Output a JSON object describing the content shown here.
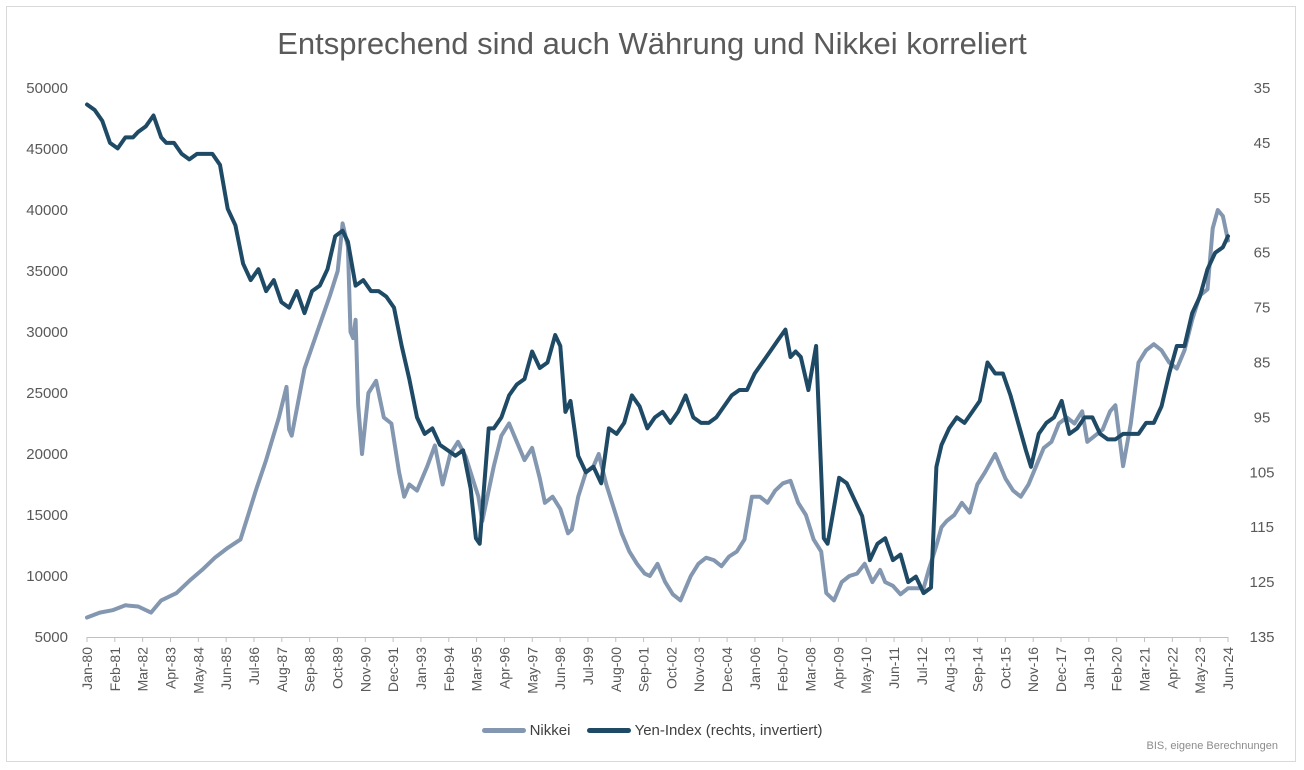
{
  "chart_data": {
    "type": "line",
    "title": "Entsprechend sind auch Währung und Nikkei korreliert",
    "source_note": "BIS, eigene Berechnungen",
    "xlabel": "",
    "ylabel": "",
    "ylabel_right": "",
    "legend_position": "bottom",
    "grid": false,
    "x_tick_labels": [
      "Jan-80",
      "Feb-81",
      "Mar-82",
      "Apr-83",
      "May-84",
      "Jun-85",
      "Jul-86",
      "Aug-87",
      "Sep-88",
      "Oct-89",
      "Nov-90",
      "Dec-91",
      "Jan-93",
      "Feb-94",
      "Mar-95",
      "Apr-96",
      "May-97",
      "Jun-98",
      "Jul-99",
      "Aug-00",
      "Sep-01",
      "Oct-02",
      "Nov-03",
      "Dec-04",
      "Jan-06",
      "Feb-07",
      "Mar-08",
      "Apr-09",
      "May-10",
      "Jun-11",
      "Jul-12",
      "Aug-13",
      "Sep-14",
      "Oct-15",
      "Nov-16",
      "Dec-17",
      "Jan-19",
      "Feb-20",
      "Mar-21",
      "Apr-22",
      "May-23",
      "Jun-24"
    ],
    "y_left": {
      "min": 5000,
      "max": 50000,
      "step": 5000,
      "tick_labels": [
        "5000",
        "10000",
        "15000",
        "20000",
        "25000",
        "30000",
        "35000",
        "40000",
        "45000",
        "50000"
      ]
    },
    "y_right": {
      "min": 35,
      "max": 135,
      "step": 10,
      "inverted": true,
      "tick_labels": [
        "35",
        "45",
        "55",
        "65",
        "75",
        "85",
        "95",
        "105",
        "115",
        "125",
        "135"
      ]
    },
    "x_range": [
      1980.0,
      2024.6
    ],
    "series": [
      {
        "name": "Nikkei",
        "axis": "left",
        "color": "#8497b0",
        "x": [
          1980.0,
          1980.5,
          1981.0,
          1981.5,
          1982.0,
          1982.5,
          1982.9,
          1983.5,
          1984.0,
          1984.5,
          1985.0,
          1985.5,
          1986.0,
          1986.3,
          1986.6,
          1987.0,
          1987.5,
          1987.8,
          1987.9,
          1988.0,
          1988.5,
          1989.0,
          1989.5,
          1989.8,
          1989.99,
          1990.2,
          1990.3,
          1990.4,
          1990.5,
          1990.6,
          1990.75,
          1991.0,
          1991.3,
          1991.6,
          1991.9,
          1992.2,
          1992.4,
          1992.6,
          1992.9,
          1993.3,
          1993.6,
          1993.9,
          1994.2,
          1994.5,
          1994.8,
          1995.1,
          1995.3,
          1995.45,
          1995.6,
          1995.9,
          1996.2,
          1996.5,
          1996.8,
          1997.1,
          1997.4,
          1997.7,
          1997.9,
          1998.2,
          1998.5,
          1998.8,
          1998.95,
          1999.2,
          1999.5,
          1999.8,
          2000.0,
          2000.3,
          2000.6,
          2000.9,
          2001.2,
          2001.5,
          2001.8,
          2002.0,
          2002.3,
          2002.6,
          2002.9,
          2003.2,
          2003.4,
          2003.6,
          2003.9,
          2004.2,
          2004.5,
          2004.8,
          2005.1,
          2005.4,
          2005.7,
          2005.99,
          2006.3,
          2006.6,
          2006.9,
          2007.2,
          2007.5,
          2007.8,
          2008.1,
          2008.4,
          2008.7,
          2008.9,
          2009.2,
          2009.5,
          2009.8,
          2010.1,
          2010.4,
          2010.7,
          2011.0,
          2011.2,
          2011.5,
          2011.8,
          2012.1,
          2012.4,
          2012.7,
          2012.9,
          2013.2,
          2013.4,
          2013.6,
          2013.9,
          2014.2,
          2014.5,
          2014.8,
          2015.1,
          2015.5,
          2015.7,
          2015.9,
          2016.2,
          2016.5,
          2016.8,
          2017.1,
          2017.4,
          2017.7,
          2017.99,
          2018.3,
          2018.6,
          2018.9,
          2019.1,
          2019.4,
          2019.7,
          2019.99,
          2020.2,
          2020.5,
          2020.8,
          2021.1,
          2021.4,
          2021.7,
          2022.0,
          2022.3,
          2022.6,
          2022.9,
          2023.2,
          2023.5,
          2023.8,
          2024.0,
          2024.2,
          2024.4,
          2024.6
        ],
        "y": [
          6600,
          7000,
          7200,
          7600,
          7500,
          7000,
          8000,
          8600,
          9600,
          10500,
          11500,
          12300,
          13000,
          15000,
          17000,
          19500,
          23000,
          25500,
          22000,
          21500,
          27000,
          30000,
          33000,
          35000,
          38900,
          37000,
          30000,
          29500,
          31000,
          24000,
          20000,
          25000,
          26000,
          23000,
          22500,
          18500,
          16500,
          17500,
          17000,
          19000,
          20700,
          17500,
          20000,
          21000,
          19800,
          17800,
          16500,
          14500,
          16000,
          19000,
          21500,
          22500,
          21000,
          19500,
          20500,
          18000,
          16000,
          16500,
          15500,
          13500,
          13800,
          16500,
          18500,
          19000,
          20000,
          17500,
          15500,
          13500,
          12000,
          11000,
          10200,
          10000,
          11000,
          9500,
          8500,
          8000,
          9000,
          10000,
          11000,
          11500,
          11300,
          10800,
          11600,
          12000,
          13000,
          16500,
          16500,
          16000,
          17000,
          17600,
          17800,
          16000,
          15000,
          13000,
          12000,
          8600,
          8000,
          9500,
          10000,
          10200,
          11000,
          9500,
          10500,
          9500,
          9200,
          8500,
          9000,
          9000,
          9000,
          10500,
          12500,
          14000,
          14500,
          15000,
          16000,
          15200,
          17500,
          18500,
          20000,
          19000,
          18000,
          17000,
          16500,
          17500,
          19000,
          20500,
          21000,
          22500,
          23000,
          22500,
          23500,
          21000,
          21500,
          22000,
          23500,
          24000,
          19000,
          22500,
          27500,
          28500,
          29000,
          28500,
          27500,
          27000,
          28500,
          31000,
          33000,
          33500,
          38500,
          40000,
          39500,
          37500
        ]
      },
      {
        "name": "Yen-Index (rechts, invertiert)",
        "axis": "right",
        "color": "#1f4a66",
        "x": [
          1980.0,
          1980.3,
          1980.6,
          1980.9,
          1981.2,
          1981.5,
          1981.8,
          1982.0,
          1982.3,
          1982.6,
          1982.9,
          1983.1,
          1983.4,
          1983.7,
          1984.0,
          1984.3,
          1984.6,
          1984.9,
          1985.2,
          1985.5,
          1985.8,
          1986.1,
          1986.4,
          1986.7,
          1987.0,
          1987.3,
          1987.6,
          1987.9,
          1988.2,
          1988.5,
          1988.8,
          1989.1,
          1989.4,
          1989.7,
          1989.99,
          1990.2,
          1990.5,
          1990.8,
          1991.1,
          1991.4,
          1991.7,
          1992.0,
          1992.3,
          1992.6,
          1992.9,
          1993.2,
          1993.5,
          1993.8,
          1994.1,
          1994.4,
          1994.7,
          1995.0,
          1995.2,
          1995.35,
          1995.5,
          1995.7,
          1995.9,
          1996.2,
          1996.5,
          1996.8,
          1997.1,
          1997.4,
          1997.7,
          1998.0,
          1998.3,
          1998.5,
          1998.7,
          1998.9,
          1999.2,
          1999.5,
          1999.8,
          2000.1,
          2000.4,
          2000.7,
          2001.0,
          2001.3,
          2001.6,
          2001.9,
          2002.2,
          2002.5,
          2002.8,
          2003.1,
          2003.4,
          2003.7,
          2004.0,
          2004.3,
          2004.6,
          2004.9,
          2005.2,
          2005.5,
          2005.8,
          2006.1,
          2006.4,
          2006.7,
          2007.0,
          2007.3,
          2007.5,
          2007.7,
          2007.9,
          2008.2,
          2008.5,
          2008.8,
          2008.95,
          2009.1,
          2009.4,
          2009.7,
          2010.0,
          2010.3,
          2010.6,
          2010.9,
          2011.2,
          2011.5,
          2011.8,
          2012.1,
          2012.4,
          2012.7,
          2012.99,
          2013.2,
          2013.4,
          2013.7,
          2014.0,
          2014.3,
          2014.6,
          2014.9,
          2015.2,
          2015.5,
          2015.8,
          2016.1,
          2016.4,
          2016.7,
          2016.9,
          2017.2,
          2017.5,
          2017.8,
          2018.1,
          2018.4,
          2018.7,
          2019.0,
          2019.3,
          2019.6,
          2019.9,
          2020.2,
          2020.5,
          2020.8,
          2021.1,
          2021.4,
          2021.7,
          2022.0,
          2022.3,
          2022.6,
          2022.9,
          2023.2,
          2023.5,
          2023.8,
          2024.1,
          2024.4,
          2024.6
        ],
        "y": [
          38,
          39,
          41,
          45,
          46,
          44,
          44,
          43,
          42,
          40,
          44,
          45,
          45,
          47,
          48,
          47,
          47,
          47,
          49,
          57,
          60,
          67,
          70,
          68,
          72,
          70,
          74,
          75,
          72,
          76,
          72,
          71,
          68,
          62,
          61,
          63,
          71,
          70,
          72,
          72,
          73,
          75,
          82,
          88,
          95,
          98,
          97,
          100,
          101,
          102,
          101,
          108,
          117,
          118,
          109,
          97,
          97,
          95,
          91,
          89,
          88,
          83,
          86,
          85,
          80,
          82,
          94,
          92,
          102,
          105,
          104,
          107,
          97,
          98,
          96,
          91,
          93,
          97,
          95,
          94,
          96,
          94,
          91,
          95,
          96,
          96,
          95,
          93,
          91,
          90,
          90,
          87,
          85,
          83,
          81,
          79,
          84,
          83,
          84,
          90,
          82,
          117,
          118,
          114,
          106,
          107,
          110,
          113,
          121,
          118,
          117,
          121,
          120,
          125,
          124,
          127,
          126,
          104,
          100,
          97,
          95,
          96,
          94,
          92,
          85,
          87,
          87,
          91,
          96,
          101,
          104,
          98,
          96,
          95,
          92,
          98,
          97,
          95,
          95,
          98,
          99,
          99,
          98,
          98,
          98,
          96,
          96,
          93,
          87,
          82,
          82,
          76,
          73,
          68,
          65,
          64,
          62
        ]
      }
    ]
  }
}
